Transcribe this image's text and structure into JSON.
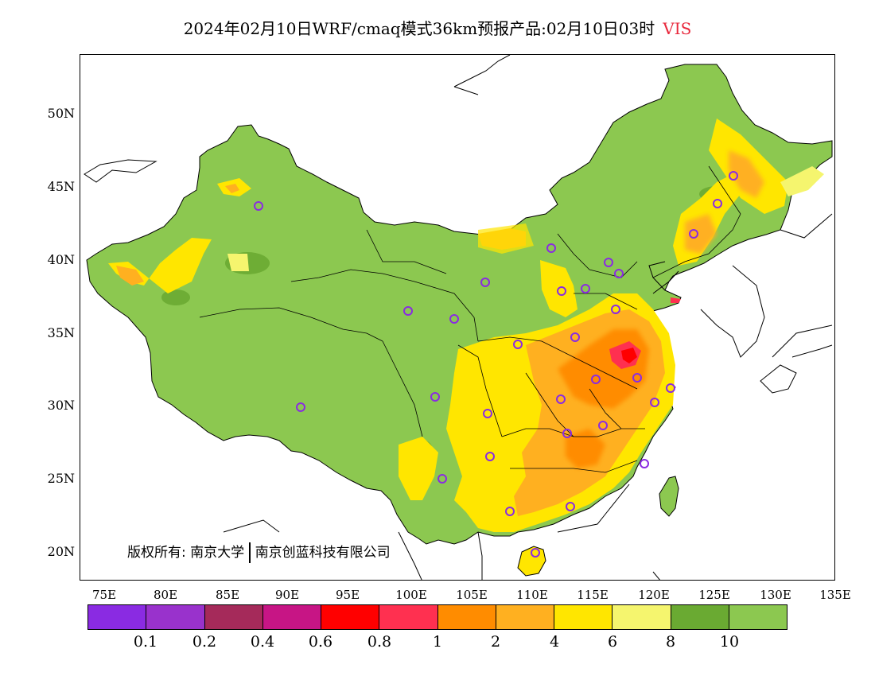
{
  "title": {
    "main": "2024年02月10日WRF/cmaq模式36km预报产品:02月10日03时",
    "variable": "VIS"
  },
  "lat_labels": [
    "50N",
    "45N",
    "40N",
    "35N",
    "30N",
    "25N",
    "20N"
  ],
  "lon_labels": [
    "75E",
    "80E",
    "85E",
    "90E",
    "95E",
    "100E",
    "105E",
    "110E",
    "115E",
    "120E",
    "125E",
    "130E",
    "135E"
  ],
  "copyright": {
    "prefix": "版权所有:",
    "org1": "南京大学",
    "org2": "南京创蓝科技有限公司"
  },
  "legend": {
    "colors": [
      "#8a2be2",
      "#9932cc",
      "#a52a5a",
      "#c71585",
      "#ff0000",
      "#ff3050",
      "#ff8c00",
      "#ffb020",
      "#ffe600",
      "#f5f56e",
      "#6aaa32",
      "#8cc850"
    ],
    "ticks": [
      "0.1",
      "0.2",
      "0.4",
      "0.6",
      "0.8",
      "1",
      "2",
      "4",
      "6",
      "8",
      "10"
    ]
  },
  "colors": {
    "land_base": "#8cc850",
    "land_dark": "#6aaa32",
    "title_variable": "#e8283c",
    "station_marker": "#8a2be2"
  }
}
